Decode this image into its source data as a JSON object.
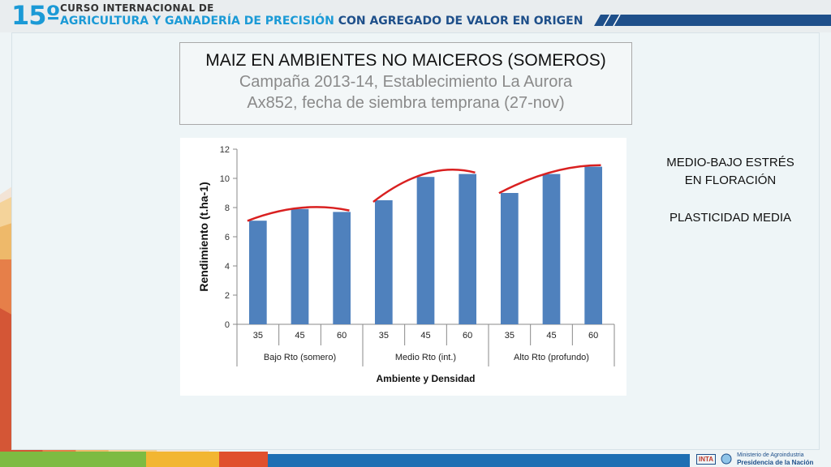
{
  "header": {
    "edition_number": "15º",
    "line1": "CURSO INTERNACIONAL DE",
    "line2_part1": "AGRICULTURA Y GANADERÍA DE PRECISIÓN",
    "line2_part2": "CON AGREGADO DE VALOR EN ORIGEN"
  },
  "title_box": {
    "title": "MAIZ EN AMBIENTES NO MAICEROS (SOMEROS)",
    "subtitle1": "Campaña 2013-14, Establecimiento La Aurora",
    "subtitle2": "Ax852, fecha de siembra temprana (27-nov)"
  },
  "side_notes": {
    "note1_line1": "MEDIO-BAJO ESTRÉS",
    "note1_line2": "EN FLORACIÓN",
    "note2": "PLASTICIDAD MEDIA"
  },
  "footer": {
    "logo1": "INTA",
    "ministry_line1": "Ministerio de Agroindustria",
    "ministry_line2": "Presidencia de la Nación"
  },
  "chart_data": {
    "type": "bar",
    "xlabel": "Ambiente y Densidad",
    "ylabel": "Rendimiento (t.ha-1)",
    "ylim": [
      0,
      12
    ],
    "yticks": [
      0,
      2,
      4,
      6,
      8,
      10,
      12
    ],
    "groups": [
      {
        "name": "Bajo Rto (somero)",
        "categories": [
          "35",
          "45",
          "60"
        ],
        "values": [
          7.1,
          7.9,
          7.7
        ]
      },
      {
        "name": "Medio Rto (int.)",
        "categories": [
          "35",
          "45",
          "60"
        ],
        "values": [
          8.5,
          10.1,
          10.3
        ]
      },
      {
        "name": "Alto Rto (profundo)",
        "categories": [
          "35",
          "45",
          "60"
        ],
        "values": [
          9.0,
          10.3,
          10.8
        ]
      }
    ],
    "trend_curves": [
      [
        7.2,
        7.95,
        7.8
      ],
      [
        8.5,
        10.3,
        10.4
      ],
      [
        9.1,
        10.4,
        10.9
      ]
    ],
    "bar_color": "#4f81bd",
    "trend_color": "#d92020",
    "grid": false
  }
}
